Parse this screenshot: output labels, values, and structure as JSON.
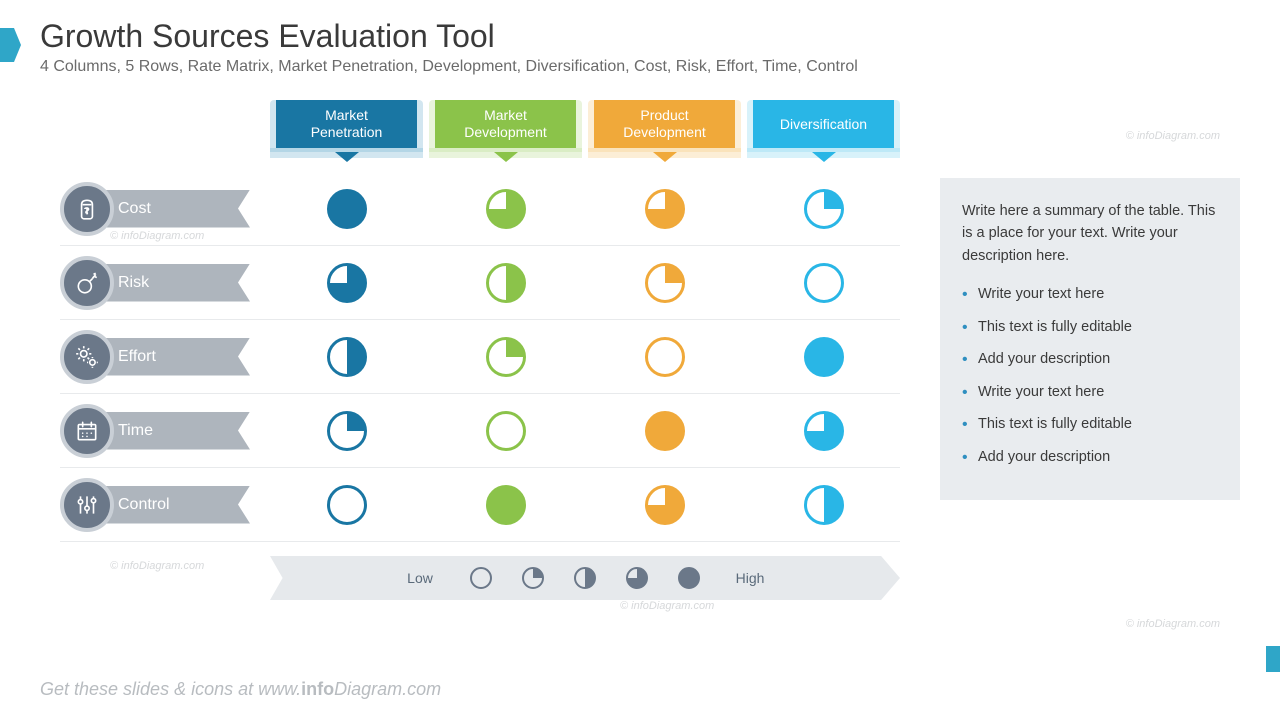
{
  "title": "Growth Sources Evaluation Tool",
  "subtitle": "4 Columns, 5 Rows, Rate Matrix, Market Penetration, Development, Diversification, Cost, Risk, Effort, Time, Control",
  "accent_color": "#2fa6c8",
  "columns": [
    {
      "label": "Market Penetration",
      "color": "#1976a3",
      "light": "#7fb8d4"
    },
    {
      "label": "Market Development",
      "color": "#8bc34a",
      "light": "#c1df9b"
    },
    {
      "label": "Product Development",
      "color": "#f0a93a",
      "light": "#f6cd8a"
    },
    {
      "label": "Diversification",
      "color": "#29b6e6",
      "light": "#8fd9f1"
    }
  ],
  "rows": [
    {
      "label": "Cost",
      "icon": "money",
      "values": [
        1.0,
        0.75,
        0.75,
        0.25
      ]
    },
    {
      "label": "Risk",
      "icon": "bomb",
      "values": [
        0.75,
        0.5,
        0.25,
        0.0
      ]
    },
    {
      "label": "Effort",
      "icon": "gears",
      "values": [
        0.5,
        0.25,
        0.0,
        1.0
      ]
    },
    {
      "label": "Time",
      "icon": "calendar",
      "values": [
        0.25,
        0.0,
        1.0,
        0.75
      ]
    },
    {
      "label": "Control",
      "icon": "sliders",
      "values": [
        0.0,
        1.0,
        0.75,
        0.5
      ]
    }
  ],
  "row_label_bg": "#aeb5bd",
  "icon_circle_bg": "#6b7889",
  "icon_circle_border": "#c9cfd6",
  "row_divider": "#e8eaec",
  "legend": {
    "bg": "#e6e9ec",
    "text_color": "#5a6a7a",
    "low": "Low",
    "high": "High",
    "color": "#6b7889",
    "steps": [
      0.0,
      0.25,
      0.5,
      0.75,
      1.0
    ]
  },
  "summary": {
    "bg": "#e9ecef",
    "intro": "Write here a summary of the table. This is a place for your text. Write your description here.",
    "bullet_color": "#2f8fc0",
    "bullets": [
      "Write your text here",
      "This text is fully editable",
      "Add your description",
      "Write your text here",
      "This text is fully editable",
      "Add your description"
    ]
  },
  "footer": {
    "text_prefix": "Get these slides & icons at ",
    "text_url": "www.infoDiagram.com",
    "color": "#b8bcc0"
  },
  "watermark_text": "© infoDiagram.com",
  "pie_style": {
    "diameter": 40,
    "stroke_width": 3
  }
}
